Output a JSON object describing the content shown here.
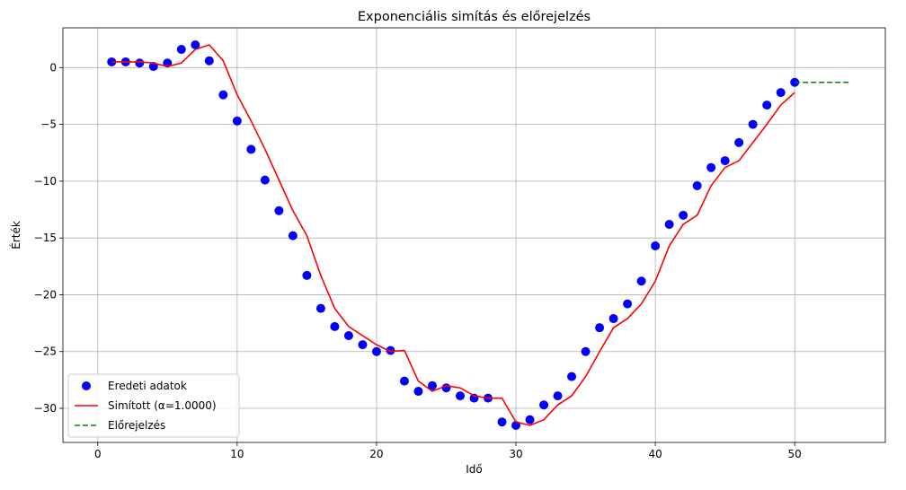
{
  "chart_data": {
    "type": "line",
    "title": "Exponenciális simítás és előrejelzés",
    "xlabel": "Idő",
    "ylabel": "Érték",
    "xlim": [
      -2.5,
      56.5
    ],
    "ylim": [
      -33.0,
      3.5
    ],
    "xticks": [
      0,
      10,
      20,
      30,
      40,
      50
    ],
    "xtick_labels": [
      "0",
      "10",
      "20",
      "30",
      "40",
      "50"
    ],
    "yticks": [
      0,
      -5,
      -10,
      -15,
      -20,
      -25,
      -30
    ],
    "ytick_labels": [
      "0",
      "−5",
      "−10",
      "−15",
      "−20",
      "−25",
      "−30"
    ],
    "grid": true,
    "legend_position": "lower-left",
    "series": [
      {
        "name": "Eredeti adatok",
        "kind": "scatter",
        "color": "#0000ff",
        "x": [
          1,
          2,
          3,
          4,
          5,
          6,
          7,
          8,
          9,
          10,
          11,
          12,
          13,
          14,
          15,
          16,
          17,
          18,
          19,
          20,
          21,
          22,
          23,
          24,
          25,
          26,
          27,
          28,
          29,
          30,
          31,
          32,
          33,
          34,
          35,
          36,
          37,
          38,
          39,
          40,
          41,
          42,
          43,
          44,
          45,
          46,
          47,
          48,
          49,
          50
        ],
        "y": [
          0.5,
          0.5,
          0.4,
          0.1,
          0.4,
          1.6,
          2.0,
          0.6,
          -2.4,
          -4.7,
          -7.2,
          -9.9,
          -12.6,
          -14.8,
          -18.3,
          -21.2,
          -22.8,
          -23.6,
          -24.4,
          -25.0,
          -24.9,
          -27.6,
          -28.5,
          -28.0,
          -28.2,
          -28.9,
          -29.1,
          -29.1,
          -31.2,
          -31.5,
          -31.0,
          -29.7,
          -28.9,
          -27.2,
          -25.0,
          -22.9,
          -22.1,
          -20.8,
          -18.8,
          -15.7,
          -13.8,
          -13.0,
          -10.4,
          -8.8,
          -8.2,
          -6.6,
          -5.0,
          -3.3,
          -2.2,
          -1.3
        ]
      },
      {
        "name": "Simított (α=1.0000)",
        "kind": "line",
        "color": "#ff0000",
        "x": [
          1,
          2,
          3,
          4,
          5,
          6,
          7,
          8,
          9,
          10,
          11,
          12,
          13,
          14,
          15,
          16,
          17,
          18,
          19,
          20,
          21,
          22,
          23,
          24,
          25,
          26,
          27,
          28,
          29,
          30,
          31,
          32,
          33,
          34,
          35,
          36,
          37,
          38,
          39,
          40,
          41,
          42,
          43,
          44,
          45,
          46,
          47,
          48,
          49,
          50
        ],
        "y": [
          0.5,
          0.5,
          0.5,
          0.4,
          0.1,
          0.4,
          1.6,
          2.0,
          0.6,
          -2.4,
          -4.7,
          -7.2,
          -9.9,
          -12.6,
          -14.8,
          -18.3,
          -21.2,
          -22.8,
          -23.6,
          -24.4,
          -25.0,
          -24.9,
          -27.6,
          -28.5,
          -28.0,
          -28.2,
          -28.9,
          -29.1,
          -29.1,
          -31.2,
          -31.5,
          -31.0,
          -29.7,
          -28.9,
          -27.2,
          -25.0,
          -22.9,
          -22.1,
          -20.8,
          -18.8,
          -15.7,
          -13.8,
          -13.0,
          -10.4,
          -8.8,
          -8.2,
          -6.6,
          -5.0,
          -3.3,
          -2.2
        ]
      },
      {
        "name": "Előrejelzés",
        "kind": "dashed-line",
        "color": "#008000",
        "x": [
          50,
          51,
          52,
          53,
          54
        ],
        "y": [
          -1.3,
          -1.3,
          -1.3,
          -1.3,
          -1.3
        ]
      }
    ]
  }
}
